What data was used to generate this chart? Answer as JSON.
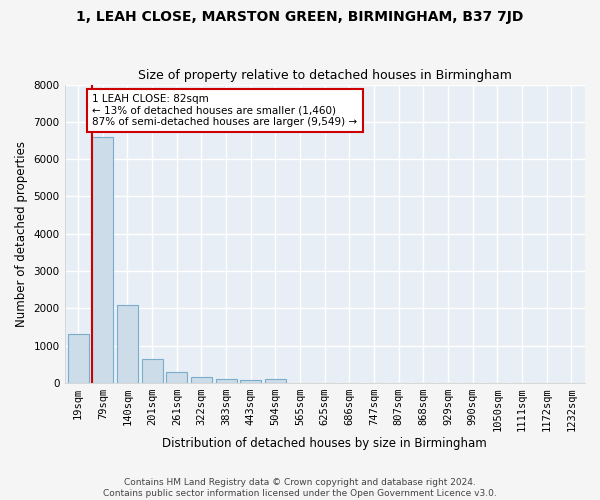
{
  "title": "1, LEAH CLOSE, MARSTON GREEN, BIRMINGHAM, B37 7JD",
  "subtitle": "Size of property relative to detached houses in Birmingham",
  "xlabel": "Distribution of detached houses by size in Birmingham",
  "ylabel": "Number of detached properties",
  "categories": [
    "19sqm",
    "79sqm",
    "140sqm",
    "201sqm",
    "261sqm",
    "322sqm",
    "383sqm",
    "443sqm",
    "504sqm",
    "565sqm",
    "625sqm",
    "686sqm",
    "747sqm",
    "807sqm",
    "868sqm",
    "929sqm",
    "990sqm",
    "1050sqm",
    "1111sqm",
    "1172sqm",
    "1232sqm"
  ],
  "values": [
    1300,
    6580,
    2090,
    640,
    285,
    145,
    95,
    75,
    115,
    0,
    0,
    0,
    0,
    0,
    0,
    0,
    0,
    0,
    0,
    0,
    0
  ],
  "bar_color": "#ccdce8",
  "bar_edge_color": "#7aadcc",
  "vline_color": "#cc0000",
  "annotation_line1": "1 LEAH CLOSE: 82sqm",
  "annotation_line2": "← 13% of detached houses are smaller (1,460)",
  "annotation_line3": "87% of semi-detached houses are larger (9,549) →",
  "annotation_box_color": "#ffffff",
  "annotation_box_edge": "#cc0000",
  "ylim": [
    0,
    8000
  ],
  "yticks": [
    0,
    1000,
    2000,
    3000,
    4000,
    5000,
    6000,
    7000,
    8000
  ],
  "background_color": "#e8eef5",
  "grid_color": "#ffffff",
  "footer": "Contains HM Land Registry data © Crown copyright and database right 2024.\nContains public sector information licensed under the Open Government Licence v3.0.",
  "title_fontsize": 10,
  "subtitle_fontsize": 9,
  "xlabel_fontsize": 8.5,
  "ylabel_fontsize": 8.5,
  "tick_fontsize": 7.5,
  "footer_fontsize": 6.5
}
